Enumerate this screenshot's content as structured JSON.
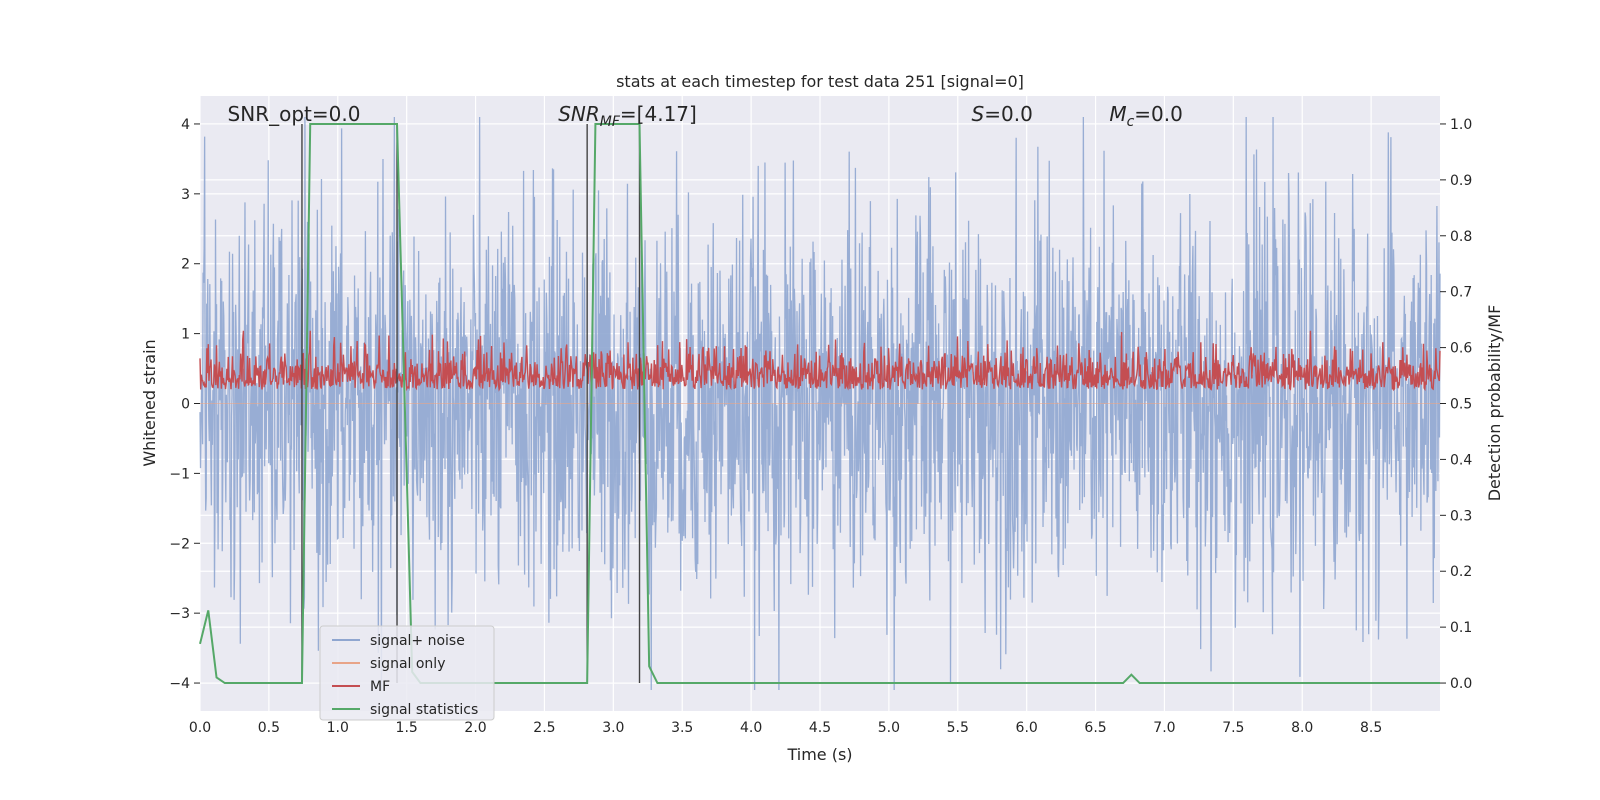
{
  "chart_data": {
    "type": "line",
    "title": "stats at each timestep for test data 251 [signal=0]",
    "xlabel": "Time (s)",
    "ylabel_left": "Whitened strain",
    "ylabel_right": "Detection probability/MF",
    "xlim": [
      0.0,
      9.0
    ],
    "ylim_left": [
      -4.4,
      4.4
    ],
    "ylim_right": [
      -0.05,
      1.05
    ],
    "x_ticks": [
      "0.0",
      "0.5",
      "1.0",
      "1.5",
      "2.0",
      "2.5",
      "3.0",
      "3.5",
      "4.0",
      "4.5",
      "5.0",
      "5.5",
      "6.0",
      "6.5",
      "7.0",
      "7.5",
      "8.0",
      "8.5"
    ],
    "y_ticks_left": [
      "4",
      "3",
      "2",
      "1",
      "0",
      "−1",
      "−2",
      "−3",
      "−4"
    ],
    "y_ticks_right": [
      "1.0",
      "0.9",
      "0.8",
      "0.7",
      "0.6",
      "0.5",
      "0.4",
      "0.3",
      "0.2",
      "0.1",
      "0.0"
    ],
    "grid": true,
    "legend_position": "lower-left",
    "annotations": [
      {
        "text": "SNR_opt=0.0",
        "x": 0.2
      },
      {
        "text": "SNR_MF=[4.17]",
        "x": 2.6
      },
      {
        "text": "S=0.0",
        "x": 5.6
      },
      {
        "text": "M_c=0.0",
        "x": 6.6
      }
    ],
    "vertical_lines": [
      0.74,
      1.43,
      2.81,
      3.19
    ],
    "series": [
      {
        "name": "signal+ noise",
        "color": "#8fa6d0",
        "axis": "left",
        "amplitude": 1.4
      },
      {
        "name": "signal only",
        "color": "#e8a488",
        "axis": "left",
        "amplitude": 0
      },
      {
        "name": "MF",
        "color": "#c44e52",
        "axis": "right",
        "range": [
          0.5,
          0.62
        ]
      },
      {
        "name": "signal statistics",
        "color": "#55a868",
        "axis": "right",
        "x": [
          0.0,
          0.06,
          0.12,
          0.18,
          0.74,
          0.8,
          1.43,
          1.54,
          1.6,
          2.81,
          2.87,
          3.19,
          3.26,
          3.32,
          6.7,
          6.76,
          6.82,
          9.0
        ],
        "values": [
          0.07,
          0.13,
          0.01,
          0.0,
          0.0,
          1.0,
          1.0,
          0.02,
          0.0,
          0.0,
          1.0,
          1.0,
          0.03,
          0.0,
          0.0,
          0.015,
          0.0,
          0.0
        ]
      }
    ]
  }
}
